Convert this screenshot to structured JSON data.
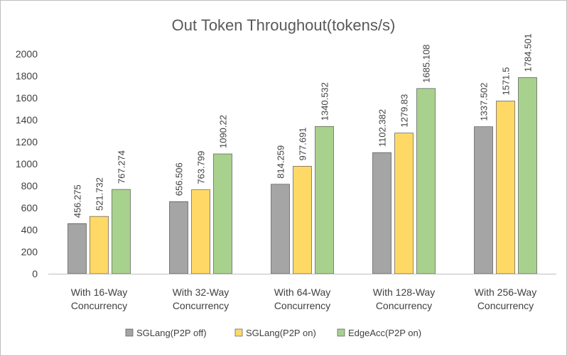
{
  "chart_data": {
    "type": "bar",
    "title": "Out Token Throughout(tokens/s)",
    "xlabel": "",
    "ylabel": "",
    "ylim": [
      0,
      2000
    ],
    "yticks": [
      0,
      200,
      400,
      600,
      800,
      1000,
      1200,
      1400,
      1600,
      1800,
      2000
    ],
    "grid": false,
    "legend_position": "bottom",
    "categories": [
      [
        "With 16-Way",
        "Concurrency"
      ],
      [
        "With 32-Way",
        "Concurrency"
      ],
      [
        "With 64-Way",
        "Concurrency"
      ],
      [
        "With 128-Way",
        "Concurrency"
      ],
      [
        "With 256-Way",
        "Concurrency"
      ]
    ],
    "series": [
      {
        "name": "SGLang(P2P off)",
        "color": "#a5a5a5",
        "values": [
          456.275,
          656.506,
          814.259,
          1102.382,
          1337.502
        ]
      },
      {
        "name": "SGLang(P2P on)",
        "color": "#ffd966",
        "values": [
          521.732,
          763.799,
          977.691,
          1279.83,
          1571.5
        ]
      },
      {
        "name": "EdgeAcc(P2P on)",
        "color": "#a9d18e",
        "values": [
          767.274,
          1090.22,
          1340.532,
          1685.108,
          1784.501
        ]
      }
    ]
  }
}
